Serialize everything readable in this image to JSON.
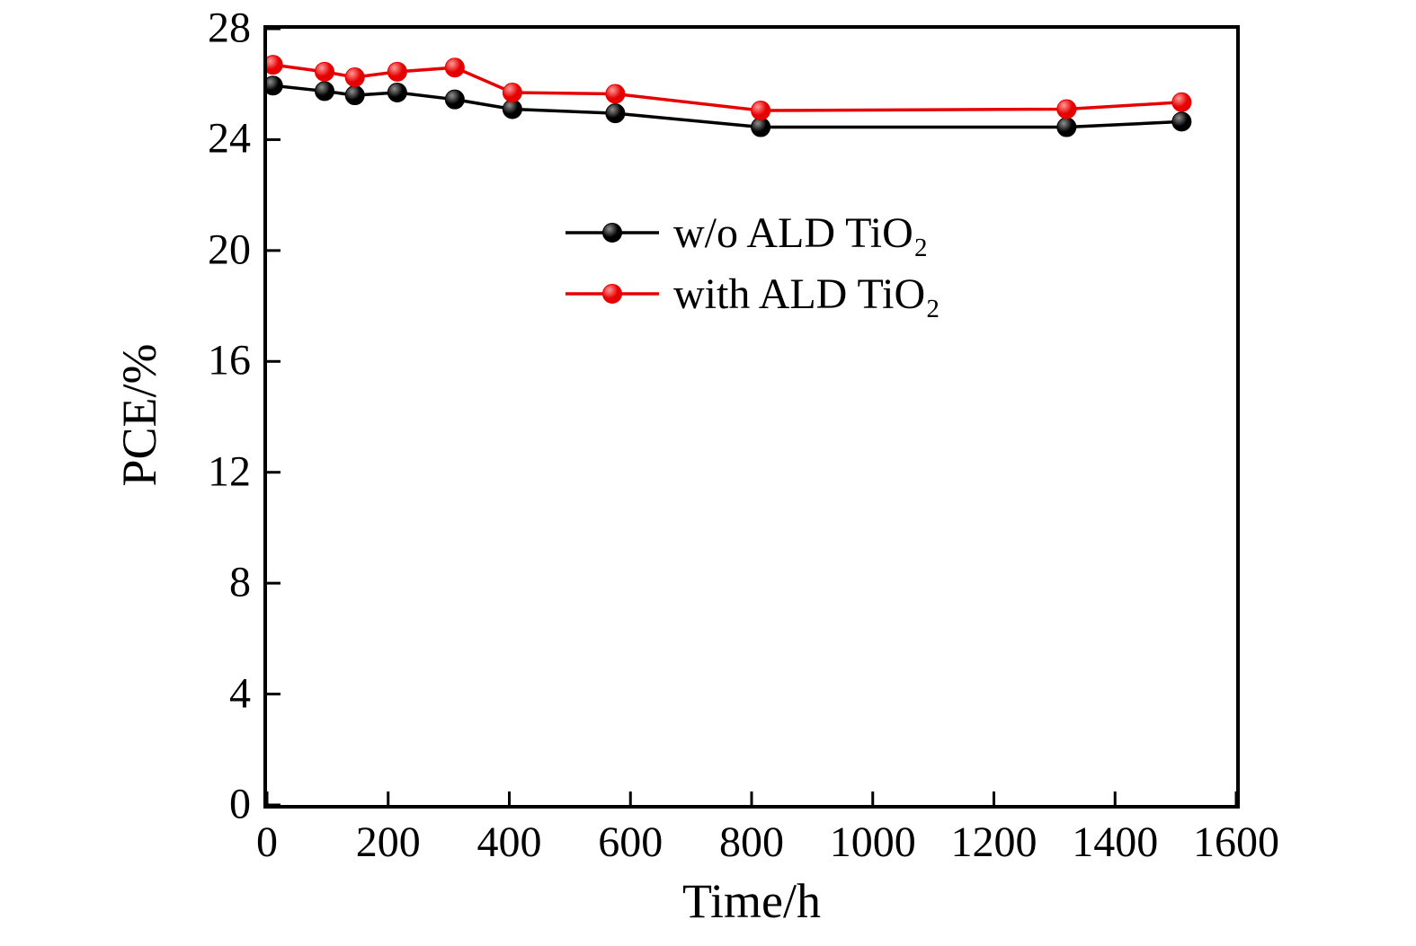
{
  "chart_data": {
    "type": "line",
    "xlabel": "Time/h",
    "ylabel": "PCE/%",
    "xlim": [
      0,
      1600
    ],
    "ylim": [
      0,
      28
    ],
    "xticks": [
      0,
      200,
      400,
      600,
      800,
      1000,
      1200,
      1400,
      1600
    ],
    "yticks": [
      0,
      4,
      8,
      12,
      16,
      20,
      24,
      28
    ],
    "grid": false,
    "legend_position": "upper-left-inside",
    "x": [
      10,
      95,
      145,
      215,
      310,
      405,
      575,
      815,
      1320,
      1510
    ],
    "series": [
      {
        "name": "w/o ALD TiO₂",
        "color": "#000000",
        "marker_highlight": "#909090",
        "values": [
          25.95,
          25.75,
          25.6,
          25.7,
          25.45,
          25.1,
          24.95,
          24.45,
          24.45,
          24.65
        ]
      },
      {
        "name": "with ALD TiO₂",
        "color": "#e60000",
        "marker_highlight": "#ff9a9a",
        "values": [
          26.7,
          26.45,
          26.25,
          26.45,
          26.6,
          25.7,
          25.65,
          25.05,
          25.1,
          25.35
        ]
      }
    ]
  }
}
